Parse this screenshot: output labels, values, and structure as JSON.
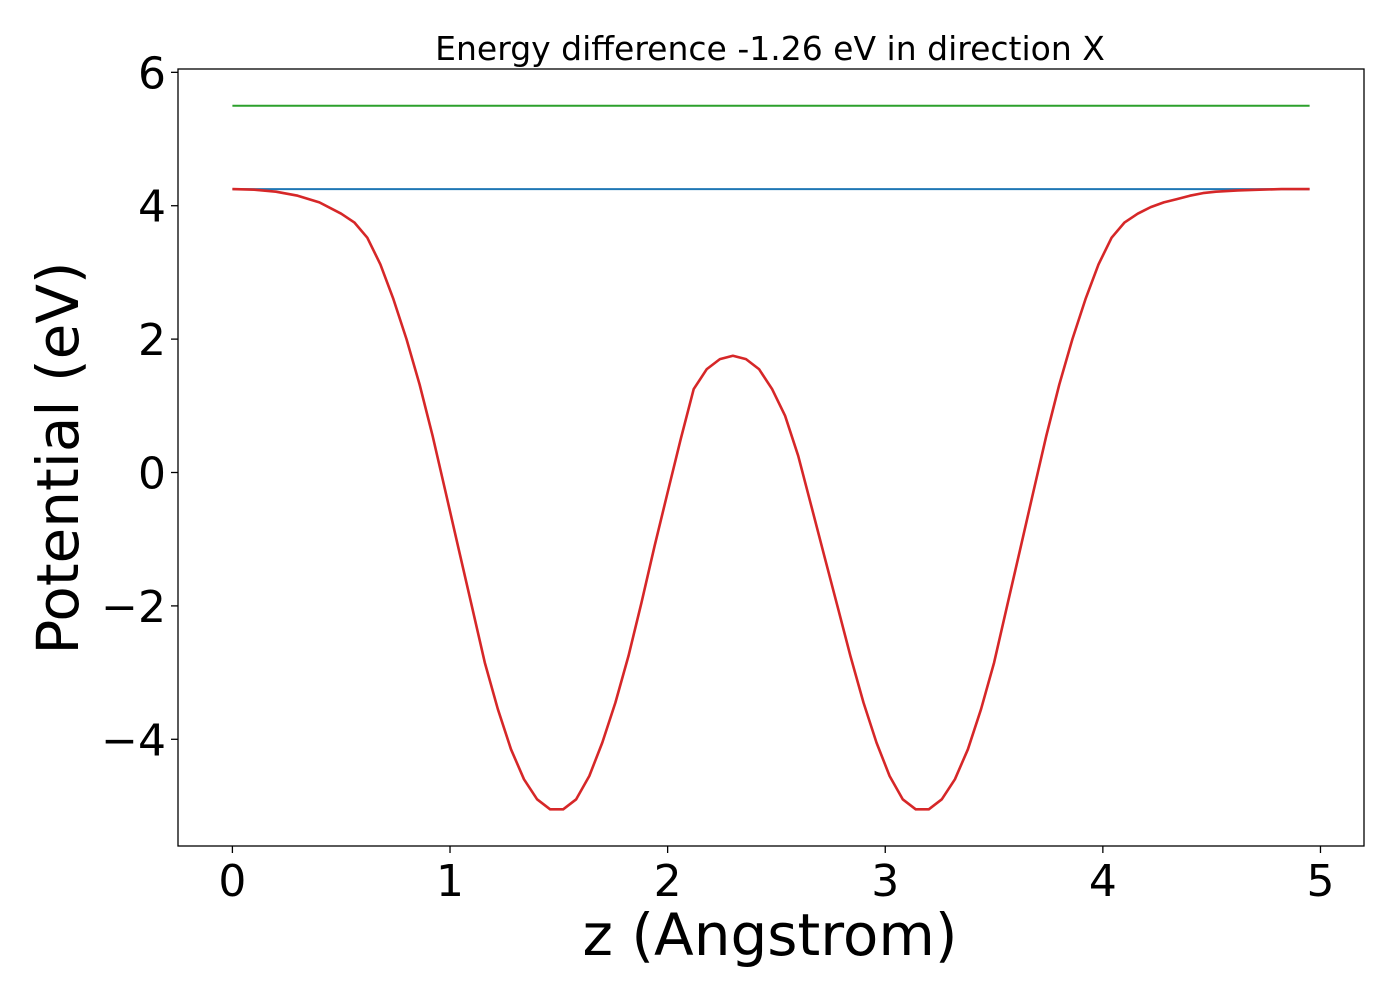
{
  "chart_data": {
    "type": "line",
    "title": "Energy difference -1.26 eV in direction X",
    "xlabel": "z (Angstrom)",
    "ylabel": "Potential (eV)",
    "xlim": [
      -0.25,
      5.2
    ],
    "ylim": [
      -5.6,
      6.05
    ],
    "xticks": [
      0,
      1,
      2,
      3,
      4,
      5
    ],
    "xtick_labels": [
      "0",
      "1",
      "2",
      "3",
      "4",
      "5"
    ],
    "yticks": [
      -4,
      -2,
      0,
      2,
      4,
      6
    ],
    "ytick_labels": [
      "−4",
      "−2",
      "0",
      "2",
      "4",
      "6"
    ],
    "grid": false,
    "series": [
      {
        "color": "#2ca02c",
        "x": [
          0,
          4.95
        ],
        "y": [
          5.5,
          5.5
        ]
      },
      {
        "color": "#1f77b4",
        "x": [
          0,
          4.95
        ],
        "y": [
          4.25,
          4.25
        ]
      },
      {
        "color": "#d62728",
        "x": [
          0,
          0.1,
          0.2,
          0.3,
          0.4,
          0.5,
          0.56,
          0.62,
          0.68,
          0.74,
          0.8,
          0.86,
          0.92,
          0.98,
          1.04,
          1.1,
          1.16,
          1.22,
          1.28,
          1.34,
          1.4,
          1.46,
          1.52,
          1.58,
          1.64,
          1.7,
          1.76,
          1.82,
          1.88,
          1.94,
          2.0,
          2.06,
          2.12,
          2.18,
          2.24,
          2.3,
          2.36,
          2.42,
          2.48,
          2.54,
          2.6,
          2.66,
          2.72,
          2.78,
          2.84,
          2.9,
          2.96,
          3.02,
          3.08,
          3.14,
          3.2,
          3.26,
          3.32,
          3.38,
          3.44,
          3.5,
          3.56,
          3.62,
          3.68,
          3.74,
          3.8,
          3.86,
          3.92,
          3.98,
          4.04,
          4.1,
          4.16,
          4.22,
          4.28,
          4.34,
          4.4,
          4.46,
          4.52,
          4.62,
          4.72,
          4.82,
          4.95
        ],
        "y": [
          4.25,
          4.24,
          4.21,
          4.15,
          4.05,
          3.88,
          3.75,
          3.52,
          3.12,
          2.6,
          2.0,
          1.32,
          0.55,
          -0.3,
          -1.15,
          -2.0,
          -2.85,
          -3.55,
          -4.15,
          -4.6,
          -4.9,
          -5.05,
          -5.05,
          -4.9,
          -4.55,
          -4.05,
          -3.45,
          -2.75,
          -1.95,
          -1.1,
          -0.3,
          0.5,
          1.25,
          1.55,
          1.7,
          1.75,
          1.7,
          1.55,
          1.25,
          0.85,
          0.25,
          -0.5,
          -1.25,
          -2.0,
          -2.75,
          -3.45,
          -4.05,
          -4.55,
          -4.9,
          -5.05,
          -5.05,
          -4.9,
          -4.6,
          -4.15,
          -3.55,
          -2.85,
          -2.0,
          -1.15,
          -0.3,
          0.55,
          1.32,
          2.0,
          2.6,
          3.12,
          3.52,
          3.75,
          3.88,
          3.98,
          4.05,
          4.1,
          4.15,
          4.19,
          4.21,
          4.23,
          4.24,
          4.25,
          4.25
        ]
      }
    ]
  }
}
